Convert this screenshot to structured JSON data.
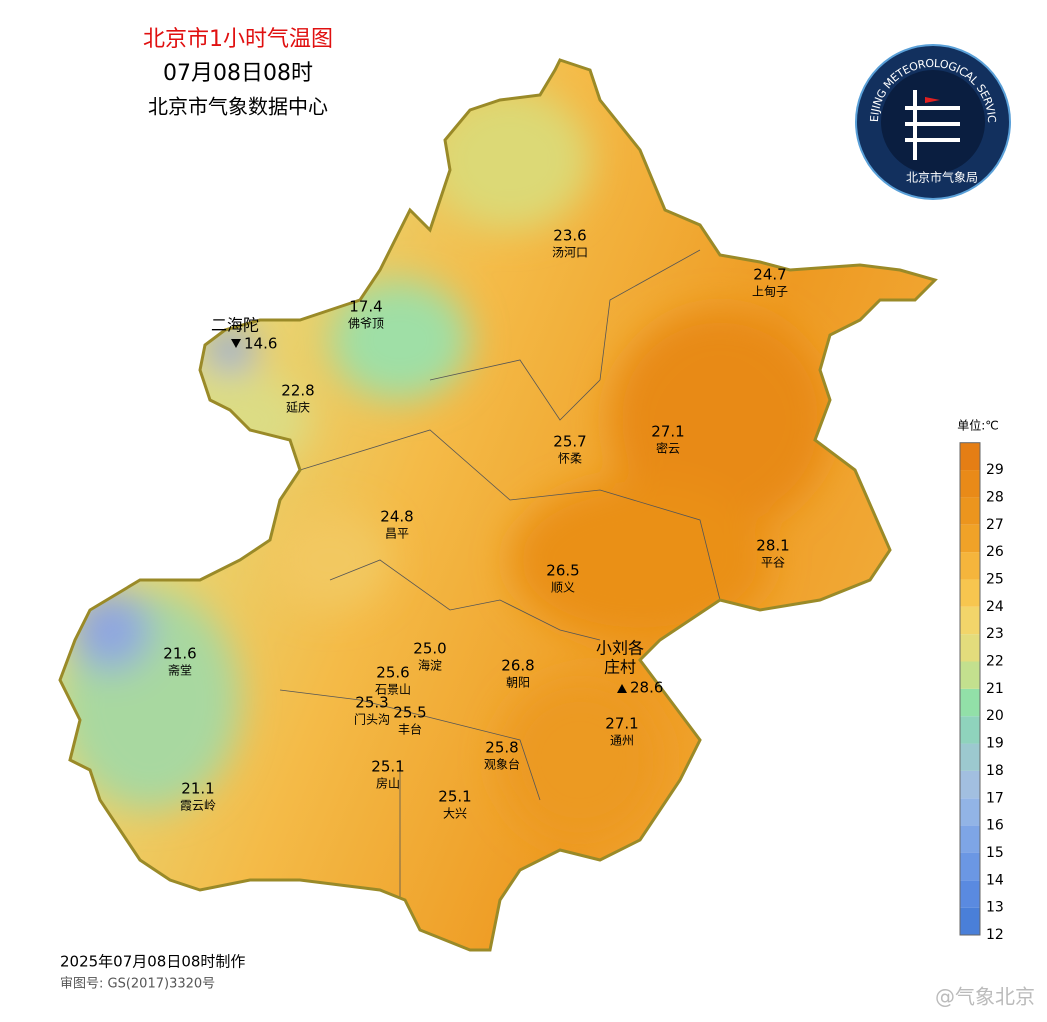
{
  "header": {
    "title": "北京市1小时气温图",
    "time": "07月08日08时",
    "source": "北京市气象数据中心"
  },
  "logo": {
    "ring_text": "BEIJING METEOROLOGICAL SERVICE",
    "bottom_text": "北京市气象局"
  },
  "stations": [
    {
      "name": "汤河口",
      "temp": "23.6"
    },
    {
      "name": "上甸子",
      "temp": "24.7"
    },
    {
      "name": "佛爷顶",
      "temp": "17.4"
    },
    {
      "name": "延庆",
      "temp": "22.8"
    },
    {
      "name": "怀柔",
      "temp": "25.7"
    },
    {
      "name": "密云",
      "temp": "27.1"
    },
    {
      "name": "昌平",
      "temp": "24.8"
    },
    {
      "name": "平谷",
      "temp": "28.1"
    },
    {
      "name": "顺义",
      "temp": "26.5"
    },
    {
      "name": "斋堂",
      "temp": "21.6"
    },
    {
      "name": "海淀",
      "temp": "25.0"
    },
    {
      "name": "石景山",
      "temp": "25.6"
    },
    {
      "name": "朝阳",
      "temp": "26.8"
    },
    {
      "name": "门头沟",
      "temp": "25.3"
    },
    {
      "name": "丰台",
      "temp": "25.5"
    },
    {
      "name": "通州",
      "temp": "27.1"
    },
    {
      "name": "观象台",
      "temp": "25.8"
    },
    {
      "name": "房山",
      "temp": "25.1"
    },
    {
      "name": "大兴",
      "temp": "25.1"
    },
    {
      "name": "霞云岭",
      "temp": "21.1"
    }
  ],
  "extremes": [
    {
      "name_lines": [
        "二海陀"
      ],
      "temp": "14.6"
    },
    {
      "name_lines": [
        "小刘各",
        "庄村"
      ],
      "temp": "28.6"
    }
  ],
  "legend": {
    "unit": "单位:℃",
    "ticks": [
      12,
      13,
      14,
      15,
      16,
      17,
      18,
      19,
      20,
      21,
      22,
      23,
      24,
      25,
      26,
      27,
      28,
      29
    ],
    "colors": [
      "#4a7fd8",
      "#5a8ae0",
      "#6b97e4",
      "#7ea5e6",
      "#92b4e6",
      "#a2bfe0",
      "#9cc9cf",
      "#8fd3bc",
      "#92e0a8",
      "#c3e08e",
      "#e3dc7c",
      "#f2d56a",
      "#f7c64f",
      "#f5b53c",
      "#f0a228",
      "#ec951e",
      "#e98a18",
      "#e57e14"
    ]
  },
  "footer": {
    "made": "2025年07月08日08时制作",
    "approval": "审图号: GS(2017)3320号",
    "watermark": "@气象北京"
  }
}
